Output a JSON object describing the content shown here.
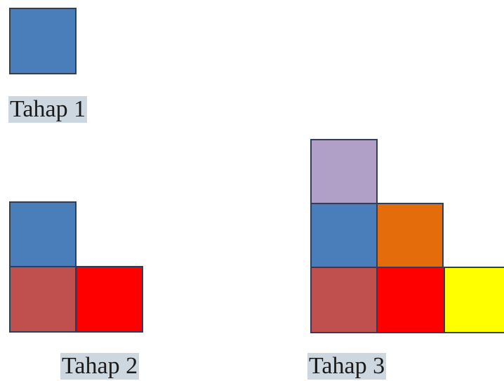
{
  "stages": [
    {
      "label": "Tahap 1",
      "squares": [
        "#4a7ebb",
        "",
        "",
        ""
      ]
    },
    {
      "label": "Tahap 2",
      "squares": [
        "#4a7ebb",
        "#c0504d",
        "#ff0000"
      ]
    },
    {
      "label": "Tahap 3",
      "squares": [
        "#b09fc6",
        "#4a7ebb",
        "#e46c0a",
        "#c0504d",
        "#ff0000",
        "#ffff00"
      ]
    }
  ],
  "colors": {
    "border": "#2f3e5a",
    "label_background": "#cdd7e0"
  }
}
